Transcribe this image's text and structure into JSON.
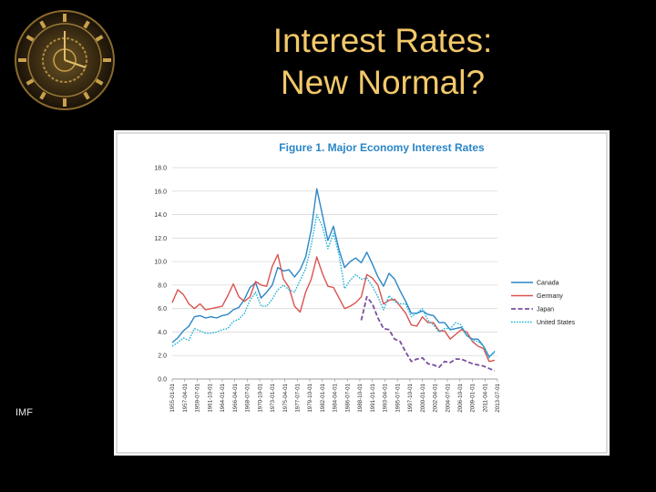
{
  "slide": {
    "title_line1": "Interest Rates:",
    "title_line2": "New Normal?",
    "source": "IMF"
  },
  "logo": {
    "icon": "clock-face-icon"
  },
  "chart_data": {
    "type": "line",
    "title": "Figure 1. Major Economy Interest Rates",
    "xlabel": "",
    "ylabel": "",
    "ylim": [
      0,
      18
    ],
    "y_ticks": [
      "0.0",
      "2.0",
      "4.0",
      "6.0",
      "8.0",
      "10.0",
      "12.0",
      "14.0",
      "16.0",
      "18.0"
    ],
    "x_ticks": [
      "1955-01-01",
      "1957-04-01",
      "1959-07-01",
      "1961-10-01",
      "1964-01-01",
      "1966-04-01",
      "1968-07-01",
      "1970-10-01",
      "1973-01-01",
      "1975-04-01",
      "1977-07-01",
      "1979-10-01",
      "1982-01-01",
      "1984-04-01",
      "1986-07-01",
      "1988-10-01",
      "1991-01-01",
      "1993-04-01",
      "1995-07-01",
      "1997-10-01",
      "2000-01-01",
      "2002-04-01",
      "2004-07-01",
      "2006-10-01",
      "2009-01-01",
      "2011-04-01",
      "2013-07-01"
    ],
    "grid": "horizontal",
    "legend_position": "right",
    "series": [
      {
        "name": "Canada",
        "color": "#2a86c8",
        "dash": "solid",
        "x": [
          1955,
          1956,
          1957,
          1958,
          1959,
          1960,
          1961,
          1962,
          1963,
          1964,
          1965,
          1966,
          1967,
          1968,
          1969,
          1970,
          1971,
          1972,
          1973,
          1974,
          1975,
          1976,
          1977,
          1978,
          1979,
          1980,
          1981,
          1982,
          1983,
          1984,
          1985,
          1986,
          1987,
          1988,
          1989,
          1990,
          1991,
          1992,
          1993,
          1994,
          1995,
          1996,
          1997,
          1998,
          1999,
          2000,
          2001,
          2002,
          2003,
          2004,
          2005,
          2006,
          2007,
          2008,
          2009,
          2010,
          2011,
          2012,
          2013
        ],
        "values": [
          3.1,
          3.5,
          4.1,
          4.5,
          5.3,
          5.4,
          5.2,
          5.3,
          5.2,
          5.4,
          5.5,
          5.9,
          6.1,
          6.8,
          7.8,
          8.2,
          6.9,
          7.4,
          8.0,
          9.5,
          9.2,
          9.3,
          8.7,
          9.3,
          10.4,
          12.7,
          16.2,
          14.0,
          11.8,
          13.0,
          11.0,
          9.5,
          10.0,
          10.3,
          9.9,
          10.8,
          9.8,
          8.7,
          7.9,
          9.0,
          8.5,
          7.5,
          6.6,
          5.6,
          5.6,
          5.8,
          5.5,
          5.4,
          4.8,
          4.8,
          4.2,
          4.3,
          4.4,
          3.7,
          3.4,
          3.4,
          2.8,
          1.9,
          2.3
        ]
      },
      {
        "name": "Germany",
        "color": "#d9534f",
        "dash": "solid",
        "x": [
          1955,
          1956,
          1957,
          1958,
          1959,
          1960,
          1961,
          1962,
          1963,
          1964,
          1965,
          1966,
          1967,
          1968,
          1969,
          1970,
          1971,
          1972,
          1973,
          1974,
          1975,
          1976,
          1977,
          1978,
          1979,
          1980,
          1981,
          1982,
          1983,
          1984,
          1985,
          1986,
          1987,
          1988,
          1989,
          1990,
          1991,
          1992,
          1993,
          1994,
          1995,
          1996,
          1997,
          1998,
          1999,
          2000,
          2001,
          2002,
          2003,
          2004,
          2005,
          2006,
          2007,
          2008,
          2009,
          2010,
          2011,
          2012,
          2013
        ],
        "values": [
          6.5,
          7.6,
          7.2,
          6.4,
          6.0,
          6.4,
          5.9,
          6.0,
          6.1,
          6.2,
          7.1,
          8.1,
          7.0,
          6.6,
          7.0,
          8.3,
          8.0,
          7.9,
          9.6,
          10.6,
          8.5,
          7.8,
          6.2,
          5.7,
          7.4,
          8.5,
          10.4,
          9.0,
          7.9,
          7.8,
          6.9,
          6.0,
          6.2,
          6.5,
          7.0,
          8.9,
          8.6,
          8.0,
          6.4,
          6.7,
          6.8,
          6.2,
          5.6,
          4.6,
          4.5,
          5.3,
          4.8,
          4.8,
          4.1,
          4.1,
          3.4,
          3.8,
          4.2,
          4.0,
          3.2,
          2.8,
          2.6,
          1.5,
          1.6
        ]
      },
      {
        "name": "Japan",
        "color": "#7a4fa0",
        "dash": "dashed",
        "x": [
          1989,
          1990,
          1991,
          1992,
          1993,
          1994,
          1995,
          1996,
          1997,
          1998,
          1999,
          2000,
          2001,
          2002,
          2003,
          2004,
          2005,
          2006,
          2007,
          2008,
          2009,
          2010,
          2011,
          2012,
          2013
        ],
        "values": [
          5.0,
          7.0,
          6.4,
          5.2,
          4.3,
          4.2,
          3.4,
          3.2,
          2.3,
          1.5,
          1.7,
          1.8,
          1.3,
          1.2,
          1.0,
          1.5,
          1.4,
          1.7,
          1.7,
          1.5,
          1.3,
          1.2,
          1.1,
          0.9,
          0.7
        ]
      },
      {
        "name": "United States",
        "color": "#23b1d6",
        "dash": "dotted",
        "x": [
          1955,
          1956,
          1957,
          1958,
          1959,
          1960,
          1961,
          1962,
          1963,
          1964,
          1965,
          1966,
          1967,
          1968,
          1969,
          1970,
          1971,
          1972,
          1973,
          1974,
          1975,
          1976,
          1977,
          1978,
          1979,
          1980,
          1981,
          1982,
          1983,
          1984,
          1985,
          1986,
          1987,
          1988,
          1989,
          1990,
          1991,
          1992,
          1993,
          1994,
          1995,
          1996,
          1997,
          1998,
          1999,
          2000,
          2001,
          2002,
          2003,
          2004,
          2005,
          2006,
          2007,
          2008,
          2009,
          2010,
          2011,
          2012,
          2013
        ],
        "values": [
          2.8,
          3.1,
          3.5,
          3.3,
          4.3,
          4.1,
          3.9,
          3.9,
          4.0,
          4.2,
          4.3,
          4.9,
          5.1,
          5.6,
          6.7,
          7.4,
          6.2,
          6.2,
          6.8,
          7.6,
          8.0,
          7.6,
          7.4,
          8.4,
          9.4,
          11.4,
          14.0,
          13.0,
          11.1,
          12.4,
          10.6,
          7.7,
          8.4,
          8.9,
          8.5,
          8.6,
          7.9,
          7.0,
          5.9,
          7.1,
          6.6,
          6.4,
          6.4,
          5.3,
          5.6,
          6.0,
          5.0,
          4.6,
          4.0,
          4.3,
          4.3,
          4.8,
          4.6,
          3.7,
          3.3,
          3.2,
          2.8,
          1.8,
          2.4
        ]
      }
    ]
  }
}
